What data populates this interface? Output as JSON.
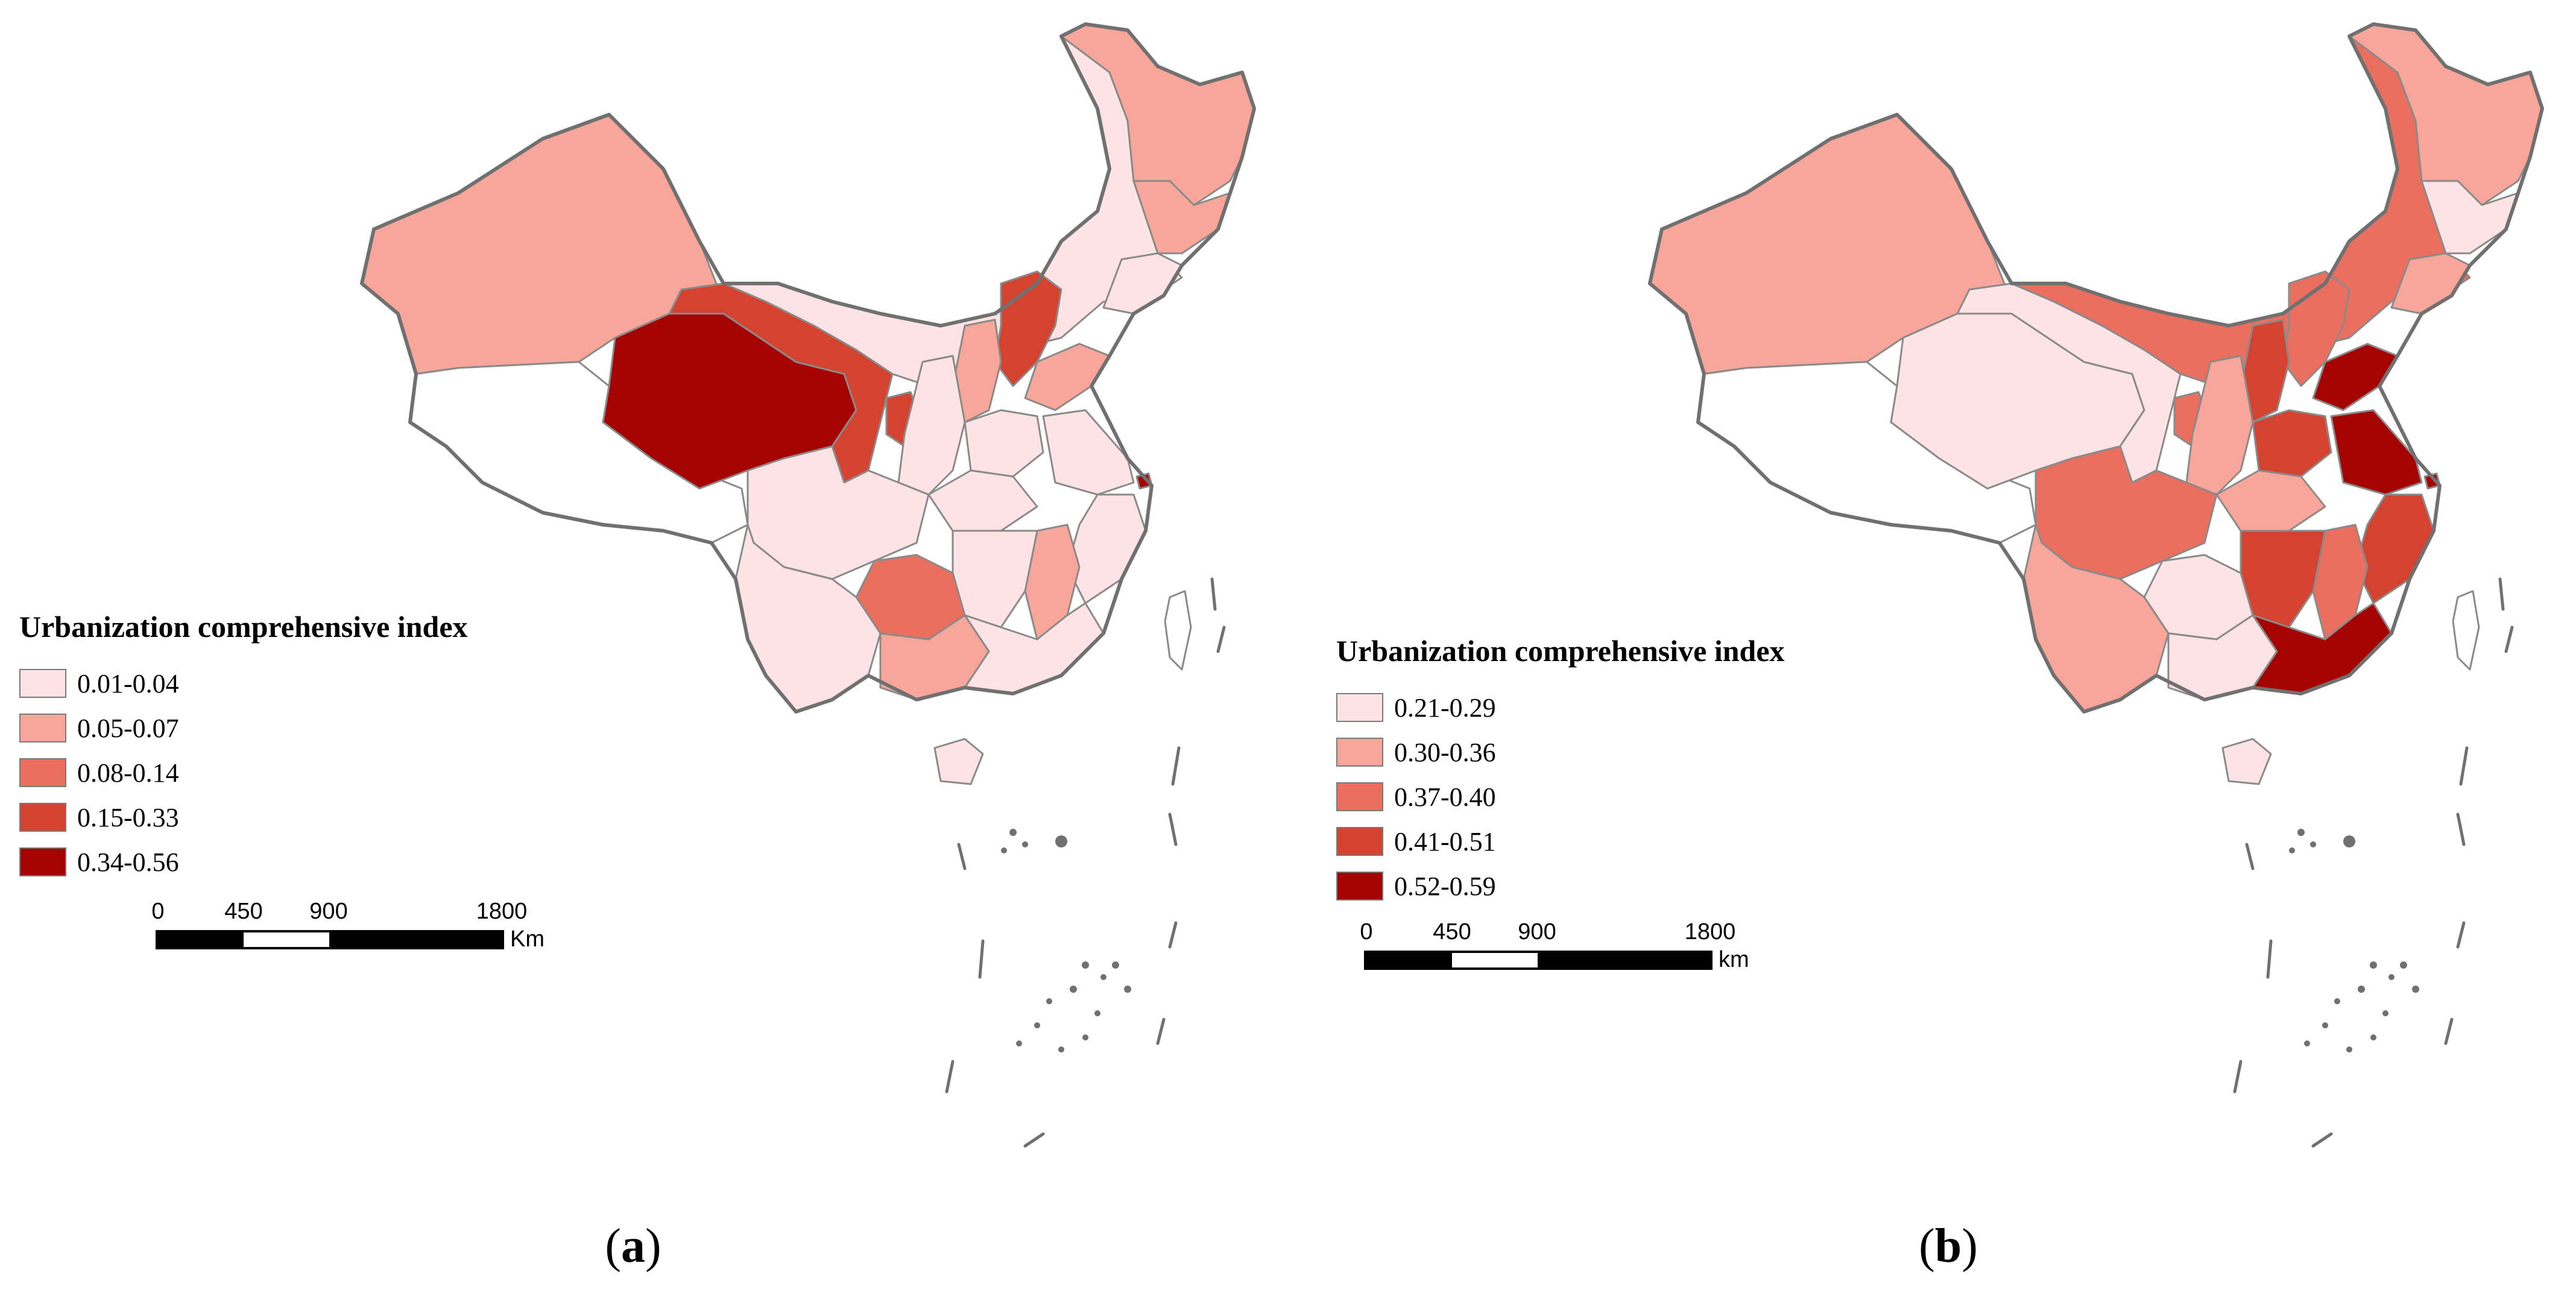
{
  "panels": [
    {
      "label": "a",
      "legend": {
        "title": "Urbanization comprehensive index",
        "classes": [
          {
            "range": "0.01-0.04",
            "color": "#fde3e3"
          },
          {
            "range": "0.05-0.07",
            "color": "#f8a69a"
          },
          {
            "range": "0.08-0.14",
            "color": "#ea6f5e"
          },
          {
            "range": "0.15-0.33",
            "color": "#d44230"
          },
          {
            "range": "0.34-0.56",
            "color": "#a50202"
          }
        ]
      },
      "scale": {
        "ticks": [
          "0",
          "450",
          "900",
          "1800"
        ],
        "unit": "Km"
      }
    },
    {
      "label": "b",
      "legend": {
        "title": "Urbanization comprehensive index",
        "classes": [
          {
            "range": "0.21-0.29",
            "color": "#fde3e3"
          },
          {
            "range": "0.30-0.36",
            "color": "#f8a69a"
          },
          {
            "range": "0.37-0.40",
            "color": "#ea6f5e"
          },
          {
            "range": "0.41-0.51",
            "color": "#d44230"
          },
          {
            "range": "0.52-0.59",
            "color": "#a50202"
          }
        ]
      },
      "scale": {
        "ticks": [
          "0",
          "450",
          "900",
          "1800"
        ],
        "unit": "km"
      }
    }
  ],
  "colors": {
    "outline": "#707070",
    "boundary": "#8a8a8a",
    "nodata": "#ffffff"
  }
}
